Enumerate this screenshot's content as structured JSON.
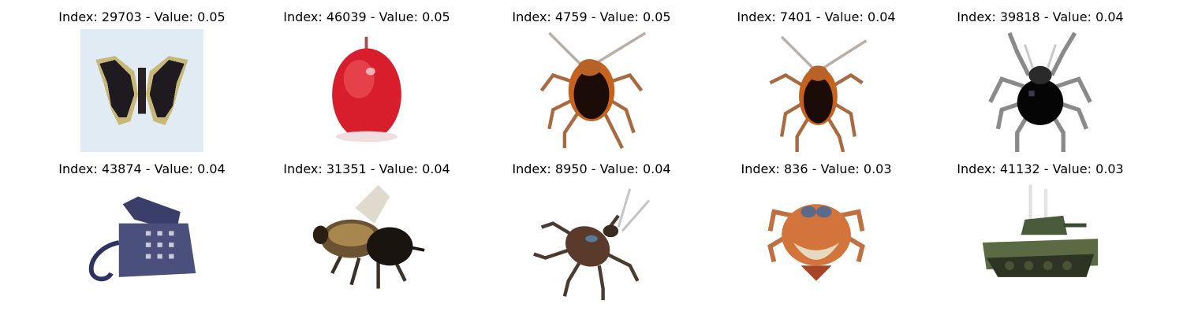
{
  "panels": [
    {
      "title": "Index: 29703 - Value: 0.05",
      "subject": "butterfly"
    },
    {
      "title": "Index: 46039 - Value: 0.05",
      "subject": "apple"
    },
    {
      "title": "Index: 4759 - Value: 0.05",
      "subject": "cockroach"
    },
    {
      "title": "Index: 7401 - Value: 0.04",
      "subject": "cockroach"
    },
    {
      "title": "Index: 39818 - Value: 0.04",
      "subject": "spider"
    },
    {
      "title": "Index: 43874 - Value: 0.04",
      "subject": "telephone"
    },
    {
      "title": "Index: 31351 - Value: 0.04",
      "subject": "bee"
    },
    {
      "title": "Index: 8950 - Value: 0.04",
      "subject": "cockroach"
    },
    {
      "title": "Index: 836 - Value: 0.03",
      "subject": "crab"
    },
    {
      "title": "Index: 41132 - Value: 0.03",
      "subject": "tank"
    }
  ]
}
